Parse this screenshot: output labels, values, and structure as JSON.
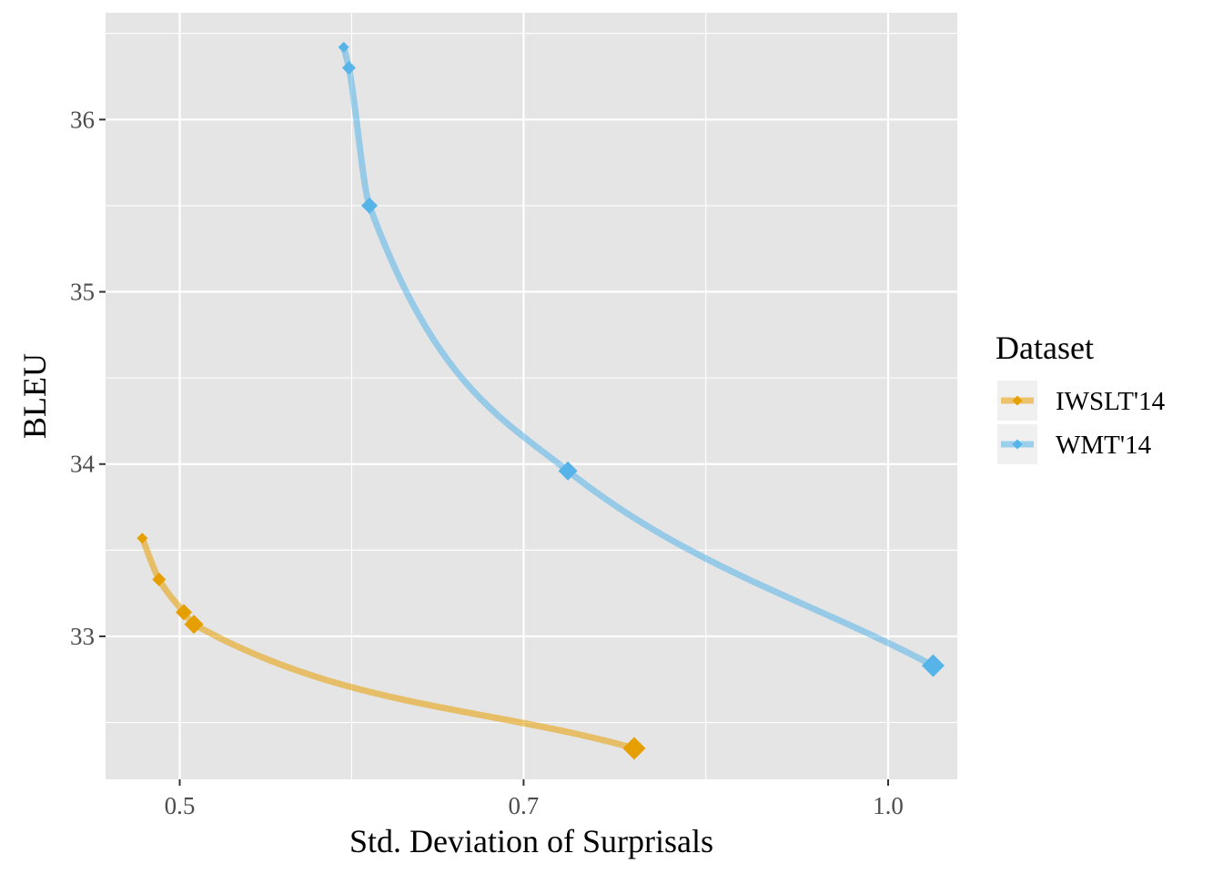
{
  "chart_data": {
    "type": "line",
    "title": "",
    "xlabel": "Std. Deviation of Surprisals",
    "ylabel": "BLEU",
    "x_scale": "log",
    "xlim": [
      0.465,
      1.07
    ],
    "ylim": [
      32.17,
      36.62
    ],
    "x_ticks": [
      0.5,
      0.7,
      1.0
    ],
    "x_tick_labels": [
      "0.5",
      "0.7",
      "1.0"
    ],
    "y_ticks": [
      33,
      34,
      35,
      36
    ],
    "y_tick_labels": [
      "33",
      "34",
      "35",
      "36"
    ],
    "legend": {
      "title": "Dataset",
      "position": "right"
    },
    "grid": true,
    "series": [
      {
        "name": "IWSLT'14",
        "color": "#E69F00",
        "x": [
          0.482,
          0.49,
          0.502,
          0.507,
          0.78
        ],
        "y": [
          33.57,
          33.33,
          33.14,
          33.07,
          32.35
        ],
        "sizes": [
          1,
          2,
          3,
          4,
          5
        ]
      },
      {
        "name": "WMT'14",
        "color": "#56B4E9",
        "x": [
          0.587,
          0.59,
          0.602,
          0.731,
          1.045
        ],
        "y": [
          36.42,
          36.3,
          35.5,
          33.96,
          32.83
        ],
        "sizes": [
          1,
          2,
          3,
          4,
          5
        ]
      }
    ]
  }
}
